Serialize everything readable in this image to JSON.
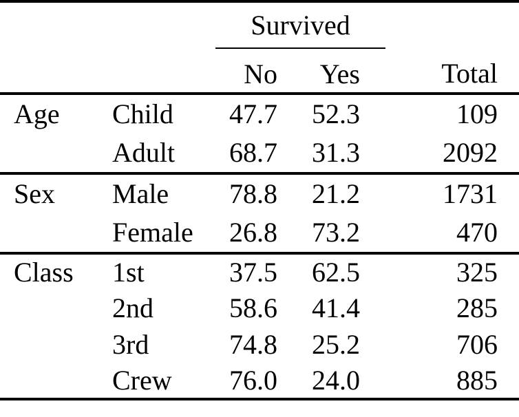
{
  "table": {
    "title_semantic": "titanic-survival-table",
    "spanner": {
      "label": "Survived"
    },
    "columns": {
      "no": "No",
      "yes": "Yes",
      "total": "Total"
    },
    "sections": [
      {
        "group": "Age",
        "rows": [
          {
            "category": "Child",
            "no": "47.7",
            "yes": "52.3",
            "total": "109"
          },
          {
            "category": "Adult",
            "no": "68.7",
            "yes": "31.3",
            "total": "2092"
          }
        ]
      },
      {
        "group": "Sex",
        "rows": [
          {
            "category": "Male",
            "no": "78.8",
            "yes": "21.2",
            "total": "1731"
          },
          {
            "category": "Female",
            "no": "26.8",
            "yes": "73.2",
            "total": "470"
          }
        ]
      },
      {
        "group": "Class",
        "rows": [
          {
            "category": "1st",
            "no": "37.5",
            "yes": "62.5",
            "total": "325"
          },
          {
            "category": "2nd",
            "no": "58.6",
            "yes": "41.4",
            "total": "285"
          },
          {
            "category": "3rd",
            "no": "74.8",
            "yes": "25.2",
            "total": "706"
          },
          {
            "category": "Crew",
            "no": "76.0",
            "yes": "24.0",
            "total": "885"
          }
        ]
      }
    ],
    "colors": {
      "text": "#000000",
      "background": "#ffffff",
      "rule": "#000000"
    }
  }
}
